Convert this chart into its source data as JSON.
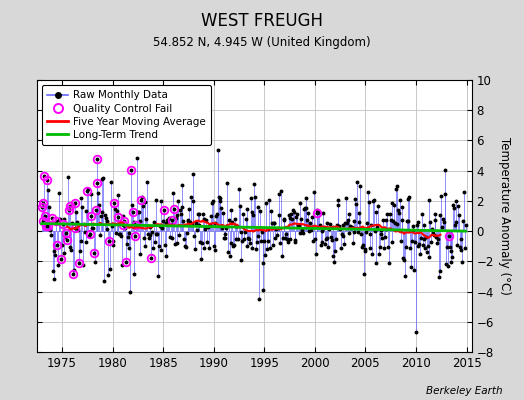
{
  "title": "WEST FREUGH",
  "subtitle": "54.852 N, 4.945 W (United Kingdom)",
  "ylabel": "Temperature Anomaly (°C)",
  "credit": "Berkeley Earth",
  "xlim": [
    1972.5,
    2015.5
  ],
  "ylim": [
    -8,
    10
  ],
  "yticks": [
    -8,
    -6,
    -4,
    -2,
    0,
    2,
    4,
    6,
    8,
    10
  ],
  "xticks": [
    1975,
    1980,
    1985,
    1990,
    1995,
    2000,
    2005,
    2010,
    2015
  ],
  "bg_color": "#d8d8d8",
  "plot_bg": "#ffffff",
  "grid_color": "#c0c0c0",
  "stem_color": "#6666ff",
  "dot_color": "#000000",
  "ma_color": "#ff0000",
  "trend_color": "#00bb00",
  "qc_color": "#ff00ff",
  "seed": 42
}
